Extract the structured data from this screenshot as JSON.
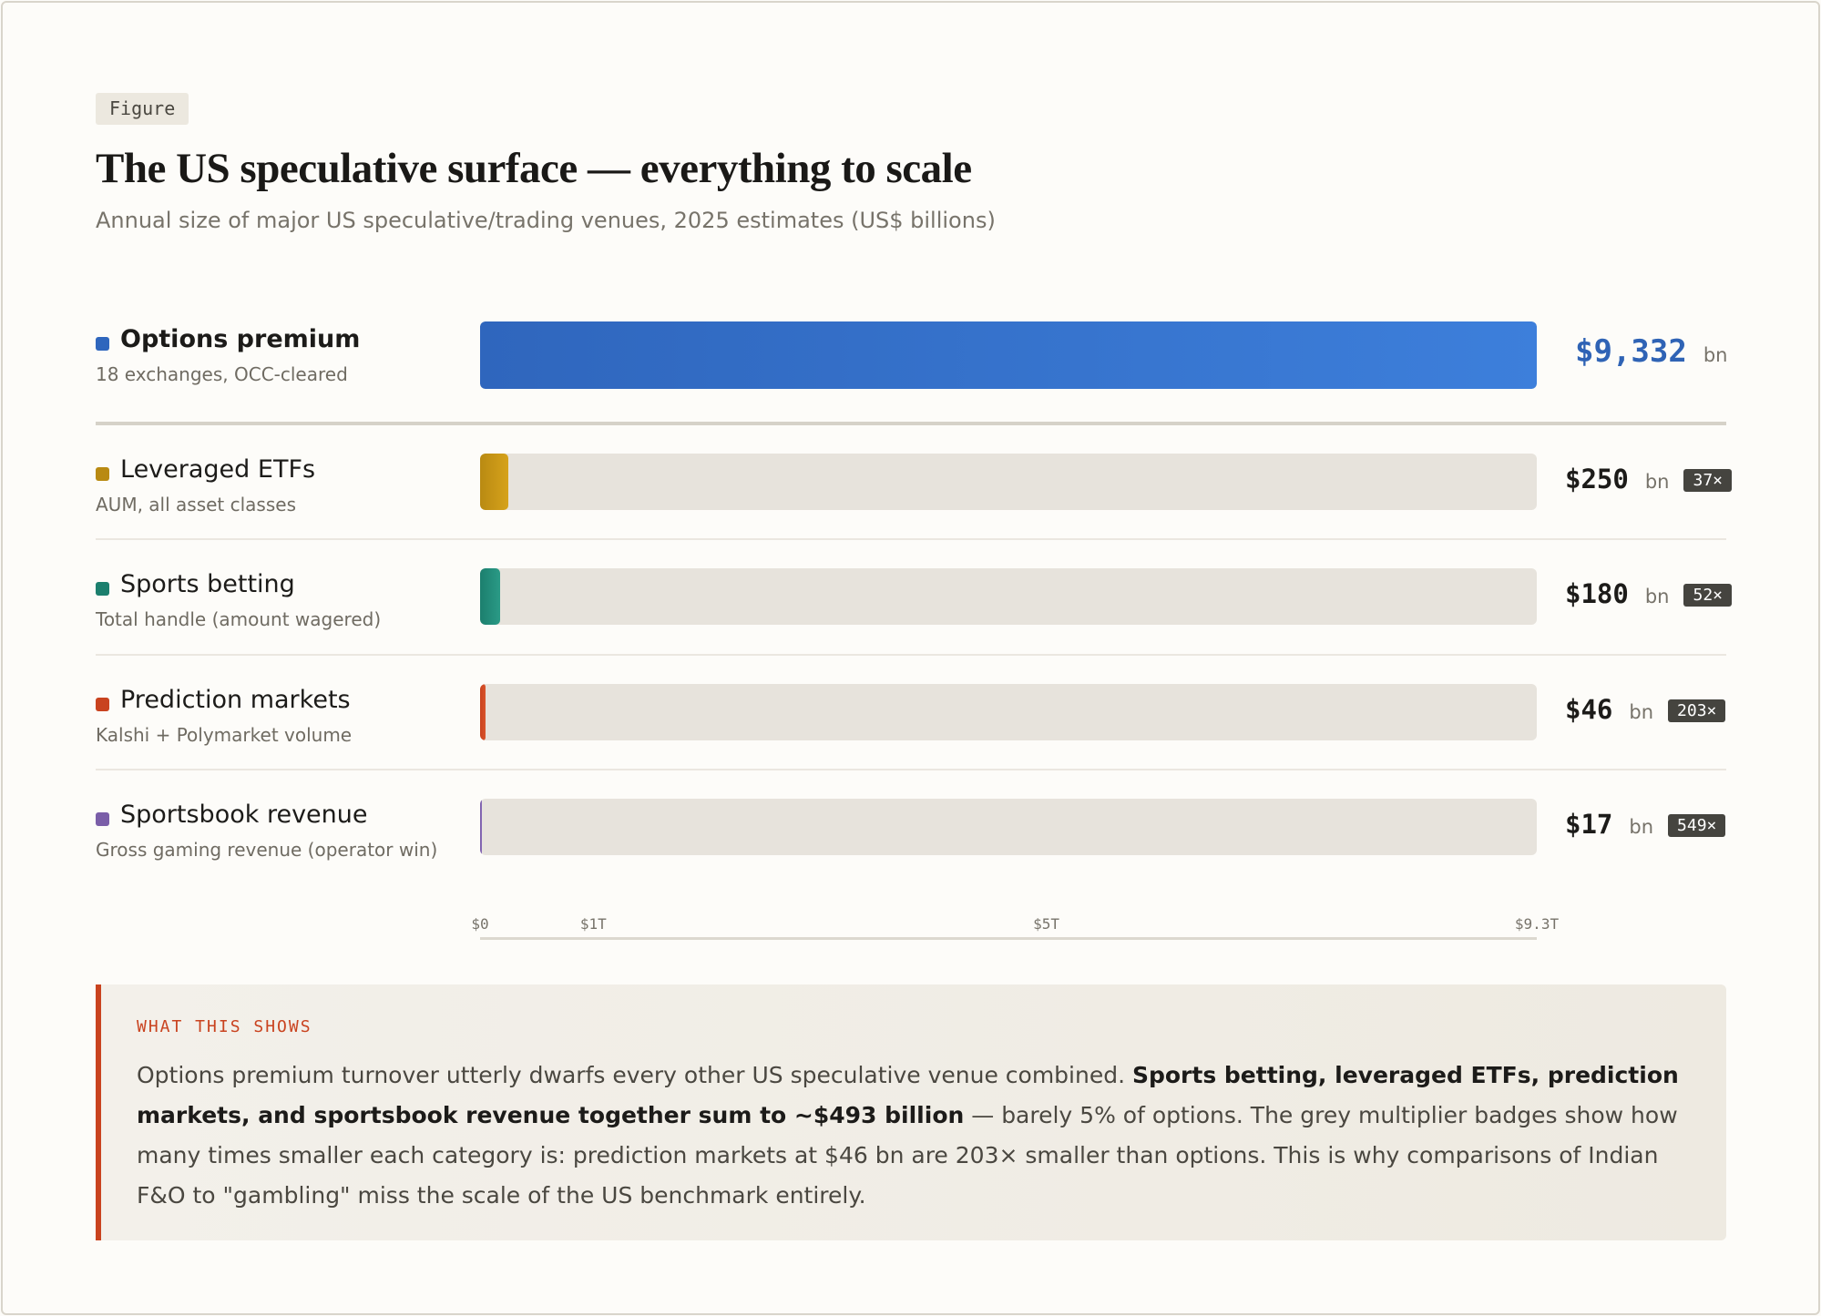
{
  "tag": "Figure",
  "title": "The US speculative surface — everything to scale",
  "subtitle": "Annual size of major US speculative/trading venues, 2025 estimates (US$ billions)",
  "chart_data": {
    "type": "bar",
    "orientation": "horizontal",
    "title": "The US speculative surface — everything to scale",
    "subtitle": "Annual size of major US speculative/trading venues, 2025 estimates (US$ billions)",
    "xlim": [
      0,
      9332
    ],
    "unit": "bn",
    "x_ticks": [
      {
        "value": 0,
        "label": "$0"
      },
      {
        "value": 1000,
        "label": "$1T"
      },
      {
        "value": 5000,
        "label": "$5T"
      },
      {
        "value": 9332,
        "label": "$9.3T"
      }
    ],
    "rows": [
      {
        "label": "Options premium",
        "sublabel": "18 exchanges, OCC-cleared",
        "value": 9332,
        "display": "$9,332",
        "badge": "",
        "color": "#2f66bd",
        "color2": "#3d7fdb"
      },
      {
        "label": "Leveraged ETFs",
        "sublabel": "AUM, all asset classes",
        "value": 250,
        "display": "$250",
        "badge": "37×",
        "color": "#b98a12",
        "color2": "#d6a21b"
      },
      {
        "label": "Sports betting",
        "sublabel": "Total handle (amount wagered)",
        "value": 180,
        "display": "$180",
        "badge": "52×",
        "color": "#1c7f6e",
        "color2": "#2a9a86"
      },
      {
        "label": "Prediction markets",
        "sublabel": "Kalshi + Polymarket volume",
        "value": 46,
        "display": "$46",
        "badge": "203×",
        "color": "#c9431f",
        "color2": "#d9542c"
      },
      {
        "label": "Sportsbook revenue",
        "sublabel": "Gross gaming revenue (operator win)",
        "value": 17,
        "display": "$17",
        "badge": "549×",
        "color": "#7a5ea8",
        "color2": "#8a6cb8"
      }
    ]
  },
  "callout": {
    "heading": "WHAT THIS SHOWS",
    "text_1": "Options premium turnover utterly dwarfs every other US speculative venue combined. ",
    "bold": "Sports betting, leveraged ETFs, prediction markets, and sportsbook revenue together sum to ~$493 billion",
    "text_2": " — barely 5% of options. The grey multiplier badges show how many times smaller each category is: prediction markets at $46 bn are 203× smaller than options. This is why comparisons of Indian F&O to \"gambling\" miss the scale of the US benchmark entirely."
  }
}
